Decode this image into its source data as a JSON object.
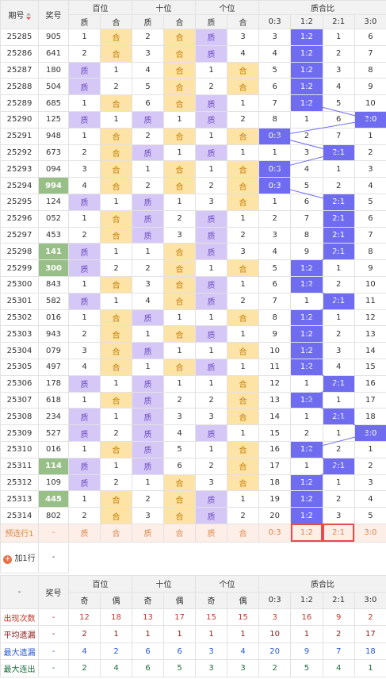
{
  "header": {
    "issue": "期号",
    "number": "奖号",
    "groups": [
      "百位",
      "十位",
      "个位",
      "质合比"
    ],
    "sub": [
      "质",
      "合",
      "质",
      "合",
      "质",
      "合",
      "0:3",
      "1:2",
      "2:1",
      "3:0"
    ]
  },
  "rows": [
    {
      "issue": "25285",
      "number": "905",
      "cells": [
        1,
        "合",
        2,
        "合",
        "质",
        3,
        3,
        "1:2",
        1,
        6
      ]
    },
    {
      "issue": "25286",
      "number": "641",
      "cells": [
        2,
        "合",
        3,
        "合",
        "质",
        4,
        4,
        "1:2",
        2,
        7
      ]
    },
    {
      "issue": "25287",
      "number": "180",
      "cells": [
        "质",
        1,
        4,
        "合",
        1,
        "合",
        5,
        "1:2",
        3,
        8
      ]
    },
    {
      "issue": "25288",
      "number": "504",
      "cells": [
        "质",
        2,
        5,
        "合",
        2,
        "合",
        6,
        "1:2",
        4,
        9
      ]
    },
    {
      "issue": "25289",
      "number": "685",
      "cells": [
        1,
        "合",
        6,
        "合",
        "质",
        1,
        7,
        "1:2",
        5,
        10
      ]
    },
    {
      "issue": "25290",
      "number": "125",
      "cells": [
        "质",
        1,
        "质",
        1,
        "质",
        2,
        8,
        1,
        6,
        "3:0"
      ]
    },
    {
      "issue": "25291",
      "number": "948",
      "cells": [
        1,
        "合",
        2,
        "合",
        1,
        "合",
        "0:3",
        2,
        7,
        1
      ]
    },
    {
      "issue": "25292",
      "number": "673",
      "cells": [
        2,
        "合",
        "质",
        1,
        "质",
        1,
        1,
        3,
        "2:1",
        2
      ]
    },
    {
      "issue": "25293",
      "number": "094",
      "cells": [
        3,
        "合",
        1,
        "合",
        1,
        "合",
        "0:3",
        4,
        1,
        3
      ]
    },
    {
      "issue": "25294",
      "number": "994",
      "marked": true,
      "cells": [
        4,
        "合",
        2,
        "合",
        2,
        "合",
        "0:3",
        5,
        2,
        4
      ]
    },
    {
      "issue": "25295",
      "number": "124",
      "cells": [
        "质",
        1,
        "质",
        1,
        3,
        "合",
        1,
        6,
        "2:1",
        5
      ]
    },
    {
      "issue": "25296",
      "number": "052",
      "cells": [
        1,
        "合",
        "质",
        2,
        "质",
        1,
        2,
        7,
        "2:1",
        6
      ]
    },
    {
      "issue": "25297",
      "number": "453",
      "cells": [
        2,
        "合",
        "质",
        3,
        "质",
        2,
        3,
        8,
        "2:1",
        7
      ]
    },
    {
      "issue": "25298",
      "number": "141",
      "marked": true,
      "cells": [
        "质",
        1,
        1,
        "合",
        "质",
        3,
        4,
        9,
        "2:1",
        8
      ]
    },
    {
      "issue": "25299",
      "number": "300",
      "marked": true,
      "cells": [
        "质",
        2,
        2,
        "合",
        1,
        "合",
        5,
        "1:2",
        1,
        9
      ]
    },
    {
      "issue": "25300",
      "number": "843",
      "cells": [
        1,
        "合",
        3,
        "合",
        "质",
        1,
        6,
        "1:2",
        2,
        10
      ]
    },
    {
      "issue": "25301",
      "number": "582",
      "cells": [
        "质",
        1,
        4,
        "合",
        "质",
        2,
        7,
        1,
        "2:1",
        11
      ]
    },
    {
      "issue": "25302",
      "number": "016",
      "cells": [
        1,
        "合",
        "质",
        1,
        1,
        "合",
        8,
        "1:2",
        1,
        12
      ]
    },
    {
      "issue": "25303",
      "number": "943",
      "cells": [
        2,
        "合",
        1,
        "合",
        "质",
        1,
        9,
        "1:2",
        2,
        13
      ]
    },
    {
      "issue": "25304",
      "number": "079",
      "cells": [
        3,
        "合",
        "质",
        1,
        1,
        "合",
        10,
        "1:2",
        3,
        14
      ]
    },
    {
      "issue": "25305",
      "number": "497",
      "cells": [
        4,
        "合",
        1,
        "合",
        "质",
        1,
        11,
        "1:2",
        4,
        15
      ]
    },
    {
      "issue": "25306",
      "number": "178",
      "cells": [
        "质",
        1,
        "质",
        1,
        1,
        "合",
        12,
        1,
        "2:1",
        16
      ]
    },
    {
      "issue": "25307",
      "number": "618",
      "cells": [
        1,
        "合",
        "质",
        2,
        2,
        "合",
        13,
        "1:2",
        1,
        17
      ]
    },
    {
      "issue": "25308",
      "number": "234",
      "cells": [
        "质",
        1,
        "质",
        3,
        3,
        "合",
        14,
        1,
        "2:1",
        18
      ]
    },
    {
      "issue": "25309",
      "number": "527",
      "cells": [
        "质",
        2,
        "质",
        4,
        "质",
        1,
        15,
        2,
        1,
        "3:0"
      ]
    },
    {
      "issue": "25310",
      "number": "016",
      "cells": [
        1,
        "合",
        "质",
        5,
        1,
        "合",
        16,
        "1:2",
        2,
        1
      ]
    },
    {
      "issue": "25311",
      "number": "114",
      "marked": true,
      "cells": [
        "质",
        1,
        "质",
        6,
        2,
        "合",
        17,
        1,
        "2:1",
        2
      ]
    },
    {
      "issue": "25312",
      "number": "109",
      "cells": [
        "质",
        2,
        1,
        "合",
        3,
        "合",
        18,
        "1:2",
        1,
        3
      ]
    },
    {
      "issue": "25313",
      "number": "445",
      "marked": true,
      "cells": [
        1,
        "合",
        2,
        "合",
        "质",
        1,
        19,
        "1:2",
        2,
        4
      ]
    },
    {
      "issue": "25314",
      "number": "802",
      "cells": [
        2,
        "合",
        3,
        "合",
        "质",
        2,
        20,
        "1:2",
        3,
        5
      ]
    }
  ],
  "preselect": {
    "label": "预选行1",
    "number": "-",
    "cells": [
      "质",
      "合",
      "质",
      "合",
      "质",
      "合",
      "0:3",
      "1:2",
      "2:1",
      "3:0"
    ]
  },
  "add_row": {
    "label": "加1行",
    "value": "-"
  },
  "stats": {
    "header": {
      "dash": "-",
      "number": "奖号",
      "groups": [
        "百位",
        "十位",
        "个位",
        "质合比"
      ],
      "sub": [
        "奇",
        "偶",
        "奇",
        "偶",
        "奇",
        "偶",
        "0:3",
        "1:2",
        "2:1",
        "3:0"
      ]
    },
    "rows": [
      {
        "label": "出现次数",
        "number": "-",
        "cells": [
          12,
          18,
          13,
          17,
          15,
          15,
          3,
          16,
          9,
          2
        ]
      },
      {
        "label": "平均遗漏",
        "number": "-",
        "cells": [
          2,
          1,
          1,
          1,
          1,
          1,
          10,
          1,
          2,
          17
        ]
      },
      {
        "label": "最大遗漏",
        "number": "-",
        "cells": [
          4,
          2,
          6,
          6,
          3,
          4,
          20,
          9,
          7,
          18
        ]
      },
      {
        "label": "最大连出",
        "number": "-",
        "cells": [
          2,
          4,
          6,
          5,
          3,
          3,
          2,
          5,
          4,
          1
        ]
      }
    ]
  }
}
